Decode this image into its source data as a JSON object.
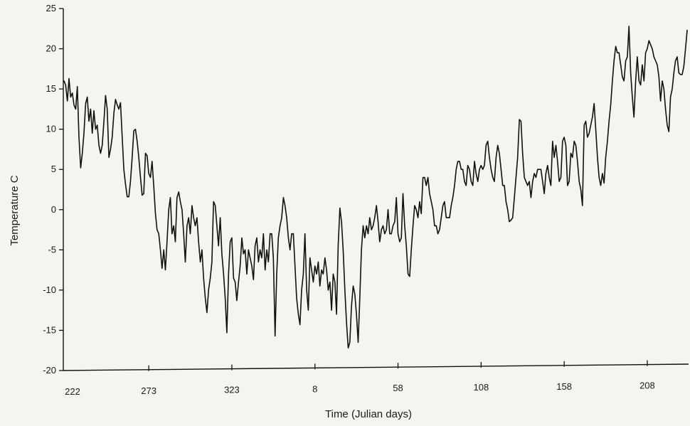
{
  "chart_data": {
    "type": "line",
    "title": "",
    "xlabel": "Time (Julian days)",
    "ylabel": "Temperature C",
    "ylim": [
      -20,
      25
    ],
    "yticks": [
      -20,
      -15,
      -10,
      -5,
      0,
      5,
      10,
      15,
      20,
      25
    ],
    "xticks": [
      {
        "label": "222",
        "index": 0
      },
      {
        "label": "273",
        "index": 51
      },
      {
        "label": "323",
        "index": 101
      },
      {
        "label": "8",
        "index": 151
      },
      {
        "label": "58",
        "index": 201
      },
      {
        "label": "108",
        "index": 251
      },
      {
        "label": "158",
        "index": 301
      },
      {
        "label": "208",
        "index": 351
      }
    ],
    "grid": false,
    "legend": "none",
    "line_color": "#111111",
    "series": [
      {
        "values": [
          16,
          15.5,
          13.5,
          16.3,
          14,
          14.5,
          13,
          12.5,
          15.3,
          9,
          5.2,
          7,
          9.5,
          13.2,
          14,
          11,
          12.5,
          9.5,
          12.3,
          10,
          10.5,
          8,
          7,
          8,
          11,
          14.2,
          12.5,
          6.5,
          7.5,
          9,
          12,
          13.7,
          13,
          12.5,
          13.3,
          9,
          5,
          3.2,
          1.6,
          1.6,
          3.5,
          6.5,
          9.8,
          10,
          8.5,
          6.5,
          4,
          1.8,
          2,
          7,
          6.7,
          4.5,
          4,
          6,
          3,
          -0.5,
          -2.5,
          -3,
          -5,
          -7.3,
          -5,
          -7.5,
          -4,
          0,
          1.5,
          -3,
          -2,
          -4,
          1.5,
          2.2,
          1,
          0,
          -3,
          -6.5,
          -2,
          -1,
          -3,
          0.5,
          -1,
          -2,
          -1,
          -4,
          -6.5,
          -5,
          -8.5,
          -11,
          -12.8,
          -10,
          -8.5,
          -6.5,
          1,
          0.5,
          -2,
          -4.5,
          -1,
          -5.5,
          -8,
          -11,
          -15.3,
          -8,
          -4,
          -3.5,
          -8.5,
          -9,
          -11.3,
          -9,
          -7,
          -3.5,
          -5.5,
          -5,
          -8,
          -5,
          -6,
          -7,
          -8.7,
          -4.5,
          -3.5,
          -6.5,
          -5,
          -6,
          -3,
          -7.5,
          -5,
          -6.5,
          -3,
          -3,
          -6,
          -15.7,
          -8,
          -3.5,
          -2,
          -1,
          1.5,
          0.5,
          -1,
          -3.5,
          -5,
          -3,
          -3,
          -7,
          -11,
          -13,
          -14.3,
          -10,
          -8,
          -3,
          -10,
          -12.5,
          -6,
          -7.5,
          -9,
          -7,
          -8,
          -6.5,
          -9.5,
          -7.5,
          -8,
          -6,
          -7.5,
          -10,
          -9,
          -12.5,
          -8,
          -9,
          -13,
          -4.5,
          0.2,
          -1.5,
          -5,
          -10,
          -14,
          -17.2,
          -16.5,
          -12,
          -9.5,
          -10.5,
          -13,
          -16.5,
          -11,
          -5,
          -2,
          -3.5,
          -2,
          -3,
          -1,
          -2.5,
          -2,
          -1,
          0.5,
          -1.5,
          -4,
          -2.5,
          -2,
          -3,
          -2.5,
          0,
          -3,
          -3,
          -2,
          -1.5,
          1.5,
          -3,
          -4,
          -3.5,
          2,
          -2,
          -4.5,
          -8,
          -8.3,
          -5,
          -2,
          0.5,
          0,
          -1,
          1,
          -0.5,
          4,
          4,
          3,
          4,
          2,
          1,
          0,
          -2,
          -2,
          -3,
          -2.5,
          -1,
          0.5,
          1,
          -1,
          -1,
          -1,
          0.5,
          1.5,
          3,
          5,
          6,
          6,
          5,
          5,
          3.5,
          3,
          5.5,
          5,
          3.5,
          3,
          6,
          4.5,
          3.5,
          5,
          5.5,
          5,
          5.5,
          8,
          8.5,
          6.5,
          5,
          4,
          3.5,
          6.5,
          8,
          7,
          5,
          3,
          3,
          1,
          0,
          -1.5,
          -1.3,
          -1,
          1.5,
          4,
          6.5,
          11.2,
          11,
          7,
          4,
          3.5,
          3,
          3.5,
          1.5,
          3.5,
          4.5,
          4,
          5,
          5,
          5,
          3.5,
          2,
          4.5,
          5.5,
          4,
          3,
          8.5,
          6.5,
          8,
          6,
          3.5,
          4,
          8.5,
          9,
          8,
          3,
          3.5,
          7,
          6.5,
          8.5,
          8,
          6,
          3.5,
          2.5,
          0.5,
          10.5,
          11,
          9,
          9.5,
          10.5,
          11.5,
          13.2,
          10,
          6.5,
          4,
          3,
          4.5,
          3.3,
          6.5,
          8.5,
          11,
          13,
          16,
          18.5,
          20.3,
          19.5,
          19.5,
          18,
          16.5,
          16,
          18.5,
          19,
          22.8,
          17,
          14,
          11.5,
          16,
          19,
          16,
          15.5,
          18,
          16,
          19.5,
          20,
          21,
          20.5,
          20,
          19,
          18.5,
          18,
          16.5,
          13.5,
          16,
          15,
          12.5,
          10.5,
          9.7,
          14,
          15,
          17,
          18.5,
          19,
          17,
          16.8,
          16.8,
          17.8,
          20,
          22.3
        ]
      }
    ]
  }
}
